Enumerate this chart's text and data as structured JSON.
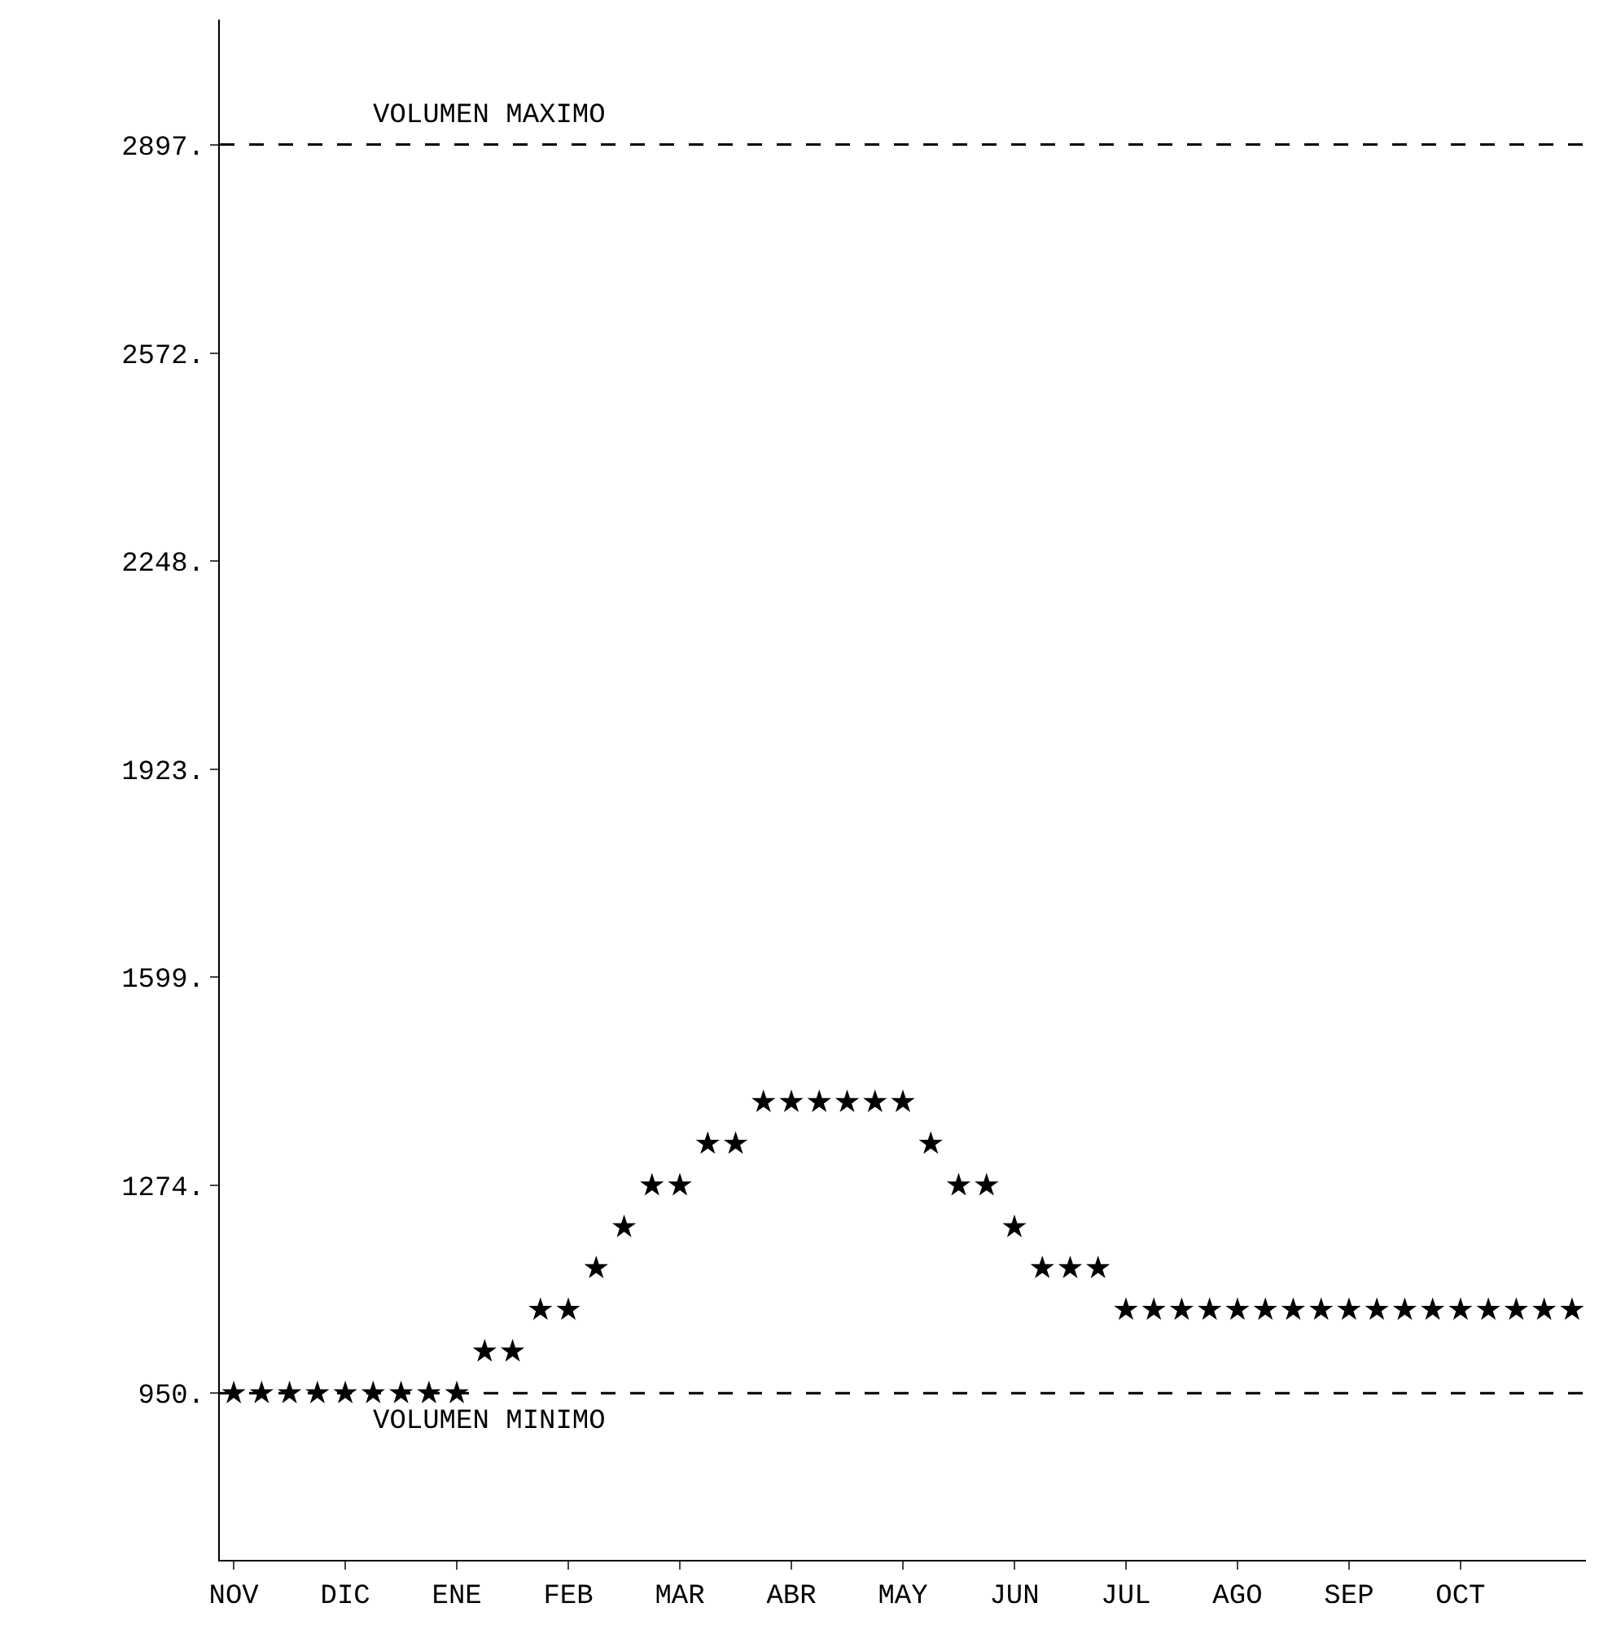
{
  "chart_data": {
    "type": "scatter",
    "categories": [
      "NOV",
      null,
      null,
      null,
      "DIC",
      null,
      null,
      null,
      "ENE",
      null,
      null,
      null,
      "FEB",
      null,
      null,
      null,
      "MAR",
      null,
      null,
      null,
      "ABR",
      null,
      null,
      null,
      "MAY",
      null,
      null,
      null,
      "JUN",
      null,
      null,
      null,
      "JUL",
      null,
      null,
      null,
      "AGO",
      null,
      null,
      null,
      "SEP",
      null,
      null,
      null,
      "OCT",
      null,
      null,
      null,
      null
    ],
    "series": [
      {
        "color": "#000000",
        "values": [
          950,
          950,
          950,
          950,
          950,
          950,
          950,
          950,
          950,
          1015,
          1015,
          1080,
          1080,
          1145,
          1209,
          1274,
          1274,
          1339,
          1339,
          1404,
          1404,
          1404,
          1404,
          1404,
          1404,
          1339,
          1274,
          1274,
          1209,
          1145,
          1145,
          1145,
          1080,
          1080,
          1080,
          1080,
          1080,
          1080,
          1080,
          1080,
          1080,
          1080,
          1080,
          1080,
          1080,
          1080,
          1080,
          1080,
          1080
        ]
      }
    ],
    "ylim": [
      690,
      3092
    ],
    "yticks": [
      {
        "value": 950,
        "label": "950."
      },
      {
        "value": 1274,
        "label": "1274."
      },
      {
        "value": 1599,
        "label": "1599."
      },
      {
        "value": 1923,
        "label": "1923."
      },
      {
        "value": 2248,
        "label": "2248."
      },
      {
        "value": 2572,
        "label": "2572."
      },
      {
        "value": 2897,
        "label": "2897."
      }
    ],
    "ref_lines": [
      {
        "axis": "y",
        "value": 2897,
        "label": "VOLUMEN MAXIMO",
        "color": "#000000",
        "line_style": "dashed"
      },
      {
        "axis": "y",
        "value": 950,
        "label": "VOLUMEN MINIMO",
        "color": "#000000",
        "line_style": "dashed"
      }
    ],
    "marker": "star",
    "grid": false
  }
}
